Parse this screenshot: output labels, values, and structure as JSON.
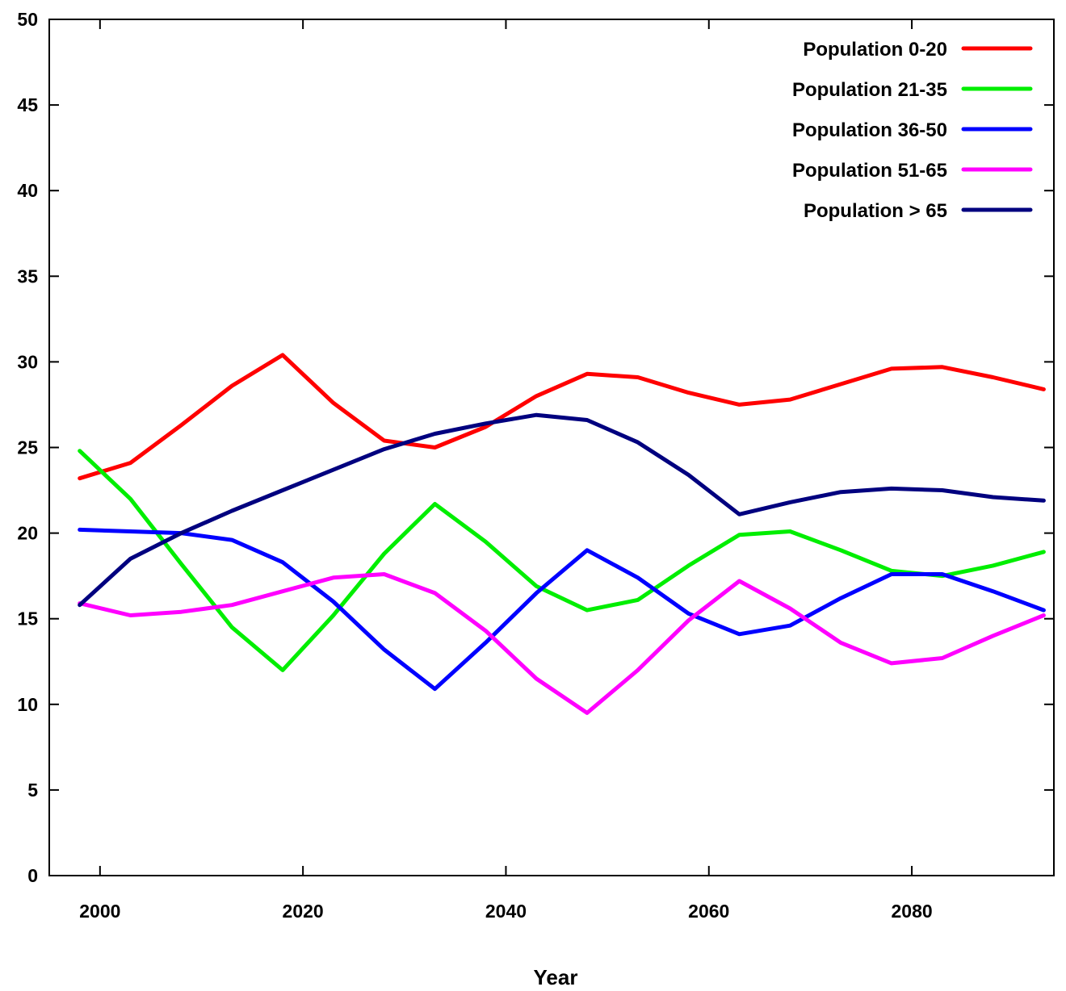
{
  "chart_data": {
    "type": "line",
    "title": "",
    "xlabel": "Year",
    "ylabel": "",
    "xlim": [
      1995,
      2094
    ],
    "ylim": [
      0,
      50
    ],
    "x_ticks": [
      2000,
      2020,
      2040,
      2060,
      2080
    ],
    "y_ticks": [
      0,
      5,
      10,
      15,
      20,
      25,
      30,
      35,
      40,
      45,
      50
    ],
    "grid": false,
    "legend_position": "top-right",
    "x": [
      1998,
      2003,
      2008,
      2013,
      2018,
      2023,
      2028,
      2033,
      2038,
      2043,
      2048,
      2053,
      2058,
      2063,
      2068,
      2073,
      2078,
      2083,
      2088,
      2093
    ],
    "series": [
      {
        "name": "Population 0-20",
        "color": "#ff0000",
        "values": [
          23.2,
          24.1,
          26.3,
          28.6,
          30.4,
          27.6,
          25.4,
          25.0,
          26.2,
          28.0,
          29.3,
          29.1,
          28.2,
          27.5,
          27.8,
          28.7,
          29.6,
          29.7,
          29.1,
          28.4
        ]
      },
      {
        "name": "Population 21-35",
        "color": "#00ee00",
        "values": [
          24.8,
          22.0,
          18.2,
          14.5,
          12.0,
          15.2,
          18.8,
          21.7,
          19.5,
          16.9,
          15.5,
          16.1,
          18.1,
          19.9,
          20.1,
          19.0,
          17.8,
          17.5,
          18.1,
          18.9
        ]
      },
      {
        "name": "Population 36-50",
        "color": "#0000ff",
        "values": [
          20.2,
          20.1,
          20.0,
          19.6,
          18.3,
          16.0,
          13.2,
          10.9,
          13.6,
          16.5,
          19.0,
          17.4,
          15.3,
          14.1,
          14.6,
          16.2,
          17.6,
          17.6,
          16.6,
          15.5
        ]
      },
      {
        "name": "Population 51-65",
        "color": "#ff00ff",
        "values": [
          15.9,
          15.2,
          15.4,
          15.8,
          16.6,
          17.4,
          17.6,
          16.5,
          14.3,
          11.5,
          9.5,
          12.0,
          14.9,
          17.2,
          15.6,
          13.6,
          12.4,
          12.7,
          14.0,
          15.2
        ]
      },
      {
        "name": "Population > 65",
        "color": "#00007f",
        "values": [
          15.8,
          18.5,
          20.0,
          21.3,
          22.5,
          23.7,
          24.9,
          25.8,
          26.4,
          26.9,
          26.6,
          25.3,
          23.4,
          21.1,
          21.8,
          22.4,
          22.6,
          22.5,
          22.1,
          21.9
        ]
      }
    ]
  }
}
